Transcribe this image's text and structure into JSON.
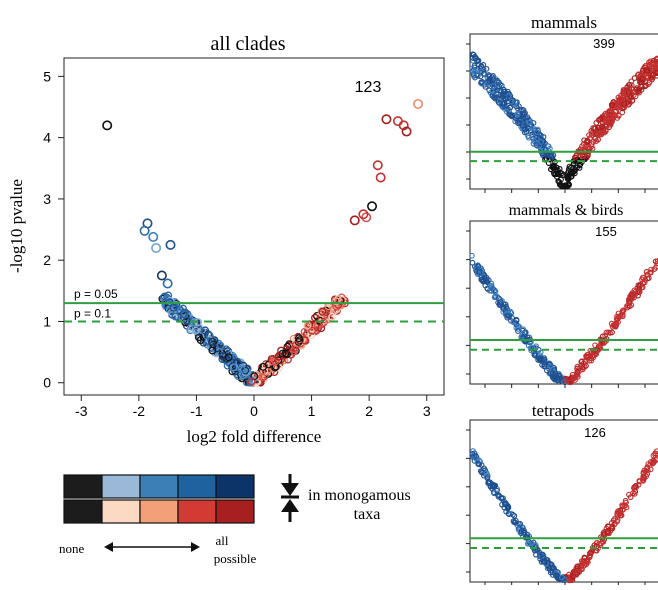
{
  "chart_data": [
    {
      "id": "all",
      "type": "scatter",
      "title": "all clades",
      "count_label": "123",
      "xlabel": "log2 fold difference",
      "ylabel": "-log10 pvalue",
      "xlim": [
        -3.3,
        3.3
      ],
      "ylim": [
        -0.2,
        5.3
      ],
      "xticks": [
        "-3",
        "-2",
        "-1",
        "0",
        "1",
        "2",
        "3"
      ],
      "yticks": [
        "0",
        "1",
        "2",
        "3",
        "4",
        "5"
      ],
      "threshold_lines": [
        {
          "label": "p = 0.05",
          "value": 1.3,
          "style": "solid",
          "color": "#2e9e3e"
        },
        {
          "label": "p = 0.1",
          "value": 1.0,
          "style": "dashed",
          "color": "#2e9e3e"
        }
      ],
      "highlight_points": [
        {
          "x": -2.55,
          "y": 4.2,
          "color": "#111111"
        },
        {
          "x": -1.85,
          "y": 2.6,
          "color": "#1f4f8f"
        },
        {
          "x": -1.9,
          "y": 2.48,
          "color": "#2d6aa8"
        },
        {
          "x": -1.75,
          "y": 2.38,
          "color": "#3d7fc0"
        },
        {
          "x": -1.45,
          "y": 2.25,
          "color": "#1f4f8f"
        },
        {
          "x": -1.7,
          "y": 2.2,
          "color": "#6fa3d6"
        },
        {
          "x": -1.6,
          "y": 1.75,
          "color": "#16365f"
        },
        {
          "x": -1.5,
          "y": 1.62,
          "color": "#2d6aa8"
        },
        {
          "x": 2.85,
          "y": 4.55,
          "color": "#f08a6a"
        },
        {
          "x": 2.6,
          "y": 4.2,
          "color": "#c43030"
        },
        {
          "x": 2.5,
          "y": 4.27,
          "color": "#c43030"
        },
        {
          "x": 2.3,
          "y": 4.3,
          "color": "#a61e1e"
        },
        {
          "x": 2.65,
          "y": 4.1,
          "color": "#a61e1e"
        },
        {
          "x": 2.15,
          "y": 3.55,
          "color": "#c43030"
        },
        {
          "x": 2.2,
          "y": 3.35,
          "color": "#c43030"
        },
        {
          "x": 2.05,
          "y": 2.88,
          "color": "#111111"
        },
        {
          "x": 1.95,
          "y": 2.7,
          "color": "#d9534f"
        },
        {
          "x": 1.9,
          "y": 2.75,
          "color": "#c43030"
        },
        {
          "x": 1.75,
          "y": 2.65,
          "color": "#a61e1e"
        }
      ]
    },
    {
      "id": "mammals",
      "type": "scatter",
      "title": "mammals",
      "count_label": "399",
      "threshold_lines": [
        {
          "value": 1.3,
          "style": "solid",
          "color": "#2e9e3e"
        },
        {
          "value": 1.0,
          "style": "dashed",
          "color": "#2e9e3e"
        }
      ]
    },
    {
      "id": "mammals_birds",
      "type": "scatter",
      "title": "mammals & birds",
      "count_label": "155",
      "threshold_lines": [
        {
          "value": 1.3,
          "style": "solid",
          "color": "#2e9e3e"
        },
        {
          "value": 1.0,
          "style": "dashed",
          "color": "#2e9e3e"
        }
      ]
    },
    {
      "id": "tetrapods",
      "type": "scatter",
      "title": "tetrapods",
      "count_label": "126",
      "threshold_lines": [
        {
          "value": 1.3,
          "style": "solid",
          "color": "#2e9e3e"
        },
        {
          "value": 1.0,
          "style": "dashed",
          "color": "#2e9e3e"
        }
      ]
    }
  ],
  "legend": {
    "down_colors": [
      "#1c1c1c",
      "#9ab8d8",
      "#3b7fb6",
      "#1f62a0",
      "#0c3468"
    ],
    "up_colors": [
      "#1c1c1c",
      "#fbd9c3",
      "#f3a07a",
      "#d13b33",
      "#a81f20"
    ],
    "description_line1": "in monogamous",
    "description_line2": "taxa",
    "scale_left": "none",
    "scale_right_line1": "all",
    "scale_right_line2": "possible"
  }
}
